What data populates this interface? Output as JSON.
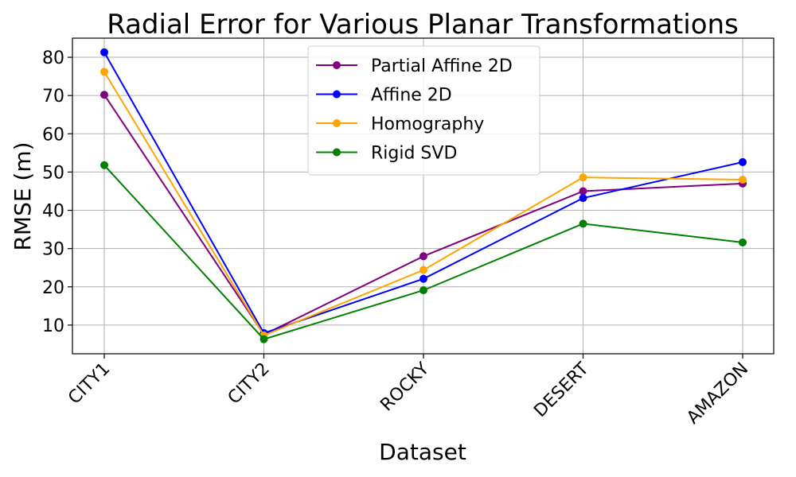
{
  "chart_data": {
    "type": "line",
    "title": "Radial Error for Various Planar Transformations",
    "xlabel": "Dataset",
    "ylabel": "RMSE (m)",
    "categories": [
      "CITY1",
      "CITY2",
      "ROCKY",
      "DESERT",
      "AMAZON"
    ],
    "ylim": [
      2.5,
      85
    ],
    "yticks": [
      10,
      20,
      30,
      40,
      50,
      60,
      70,
      80
    ],
    "grid": true,
    "legend_position": "top-center",
    "series": [
      {
        "name": "Partial Affine 2D",
        "color": "#800080",
        "values": [
          70.2,
          7.5,
          28.0,
          45.0,
          47.0
        ]
      },
      {
        "name": "Affine 2D",
        "color": "#0000ff",
        "values": [
          81.3,
          7.9,
          22.1,
          43.2,
          52.6
        ]
      },
      {
        "name": "Homography",
        "color": "#ffa500",
        "values": [
          76.2,
          7.3,
          24.4,
          48.6,
          48.0
        ]
      },
      {
        "name": "Rigid SVD",
        "color": "#008000",
        "values": [
          51.8,
          6.3,
          19.1,
          36.5,
          31.6
        ]
      }
    ]
  }
}
